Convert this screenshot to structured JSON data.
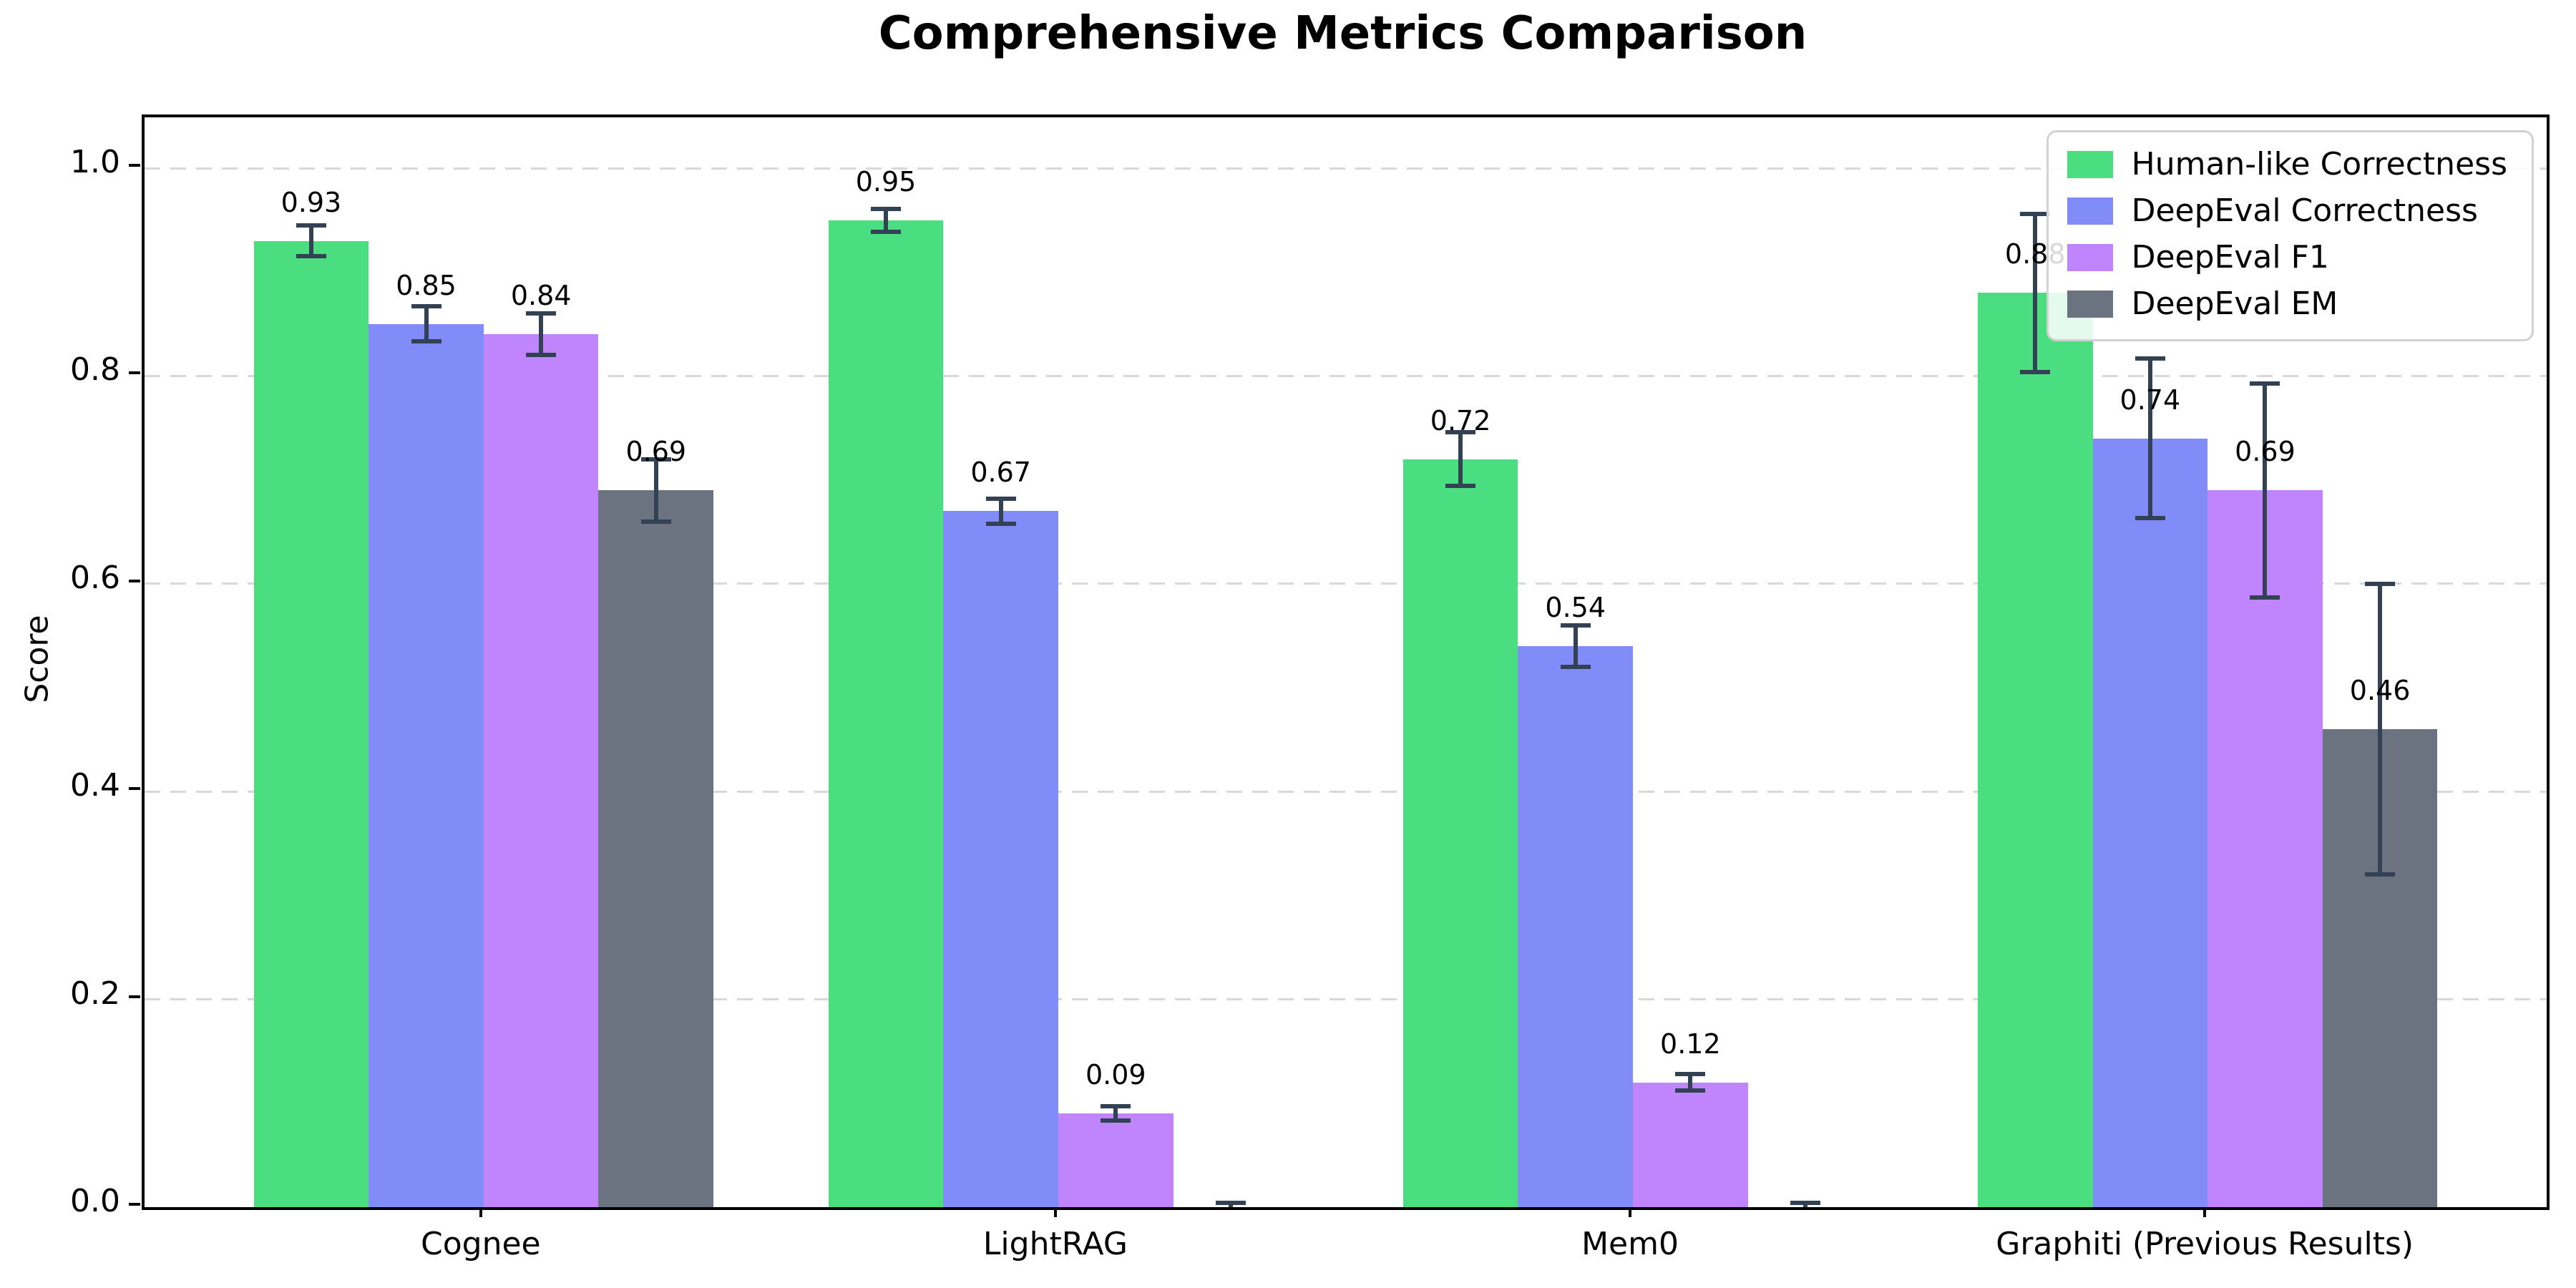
{
  "chart_data": {
    "type": "bar",
    "title": "Comprehensive Metrics Comparison",
    "ylabel": "Score",
    "xlabel": "",
    "categories": [
      "Cognee",
      "LightRAG",
      "Mem0",
      "Graphiti (Previous Results)"
    ],
    "series": [
      {
        "name": "Human-like Correctness",
        "color": "#4ade80",
        "values": [
          0.93,
          0.95,
          0.72,
          0.88
        ],
        "errors": [
          0.015,
          0.011,
          0.026,
          0.076
        ],
        "labels": [
          "0.93",
          "0.95",
          "0.72",
          "0.88"
        ]
      },
      {
        "name": "DeepEval Correctness",
        "color": "#818cf8",
        "values": [
          0.85,
          0.67,
          0.54,
          0.74
        ],
        "errors": [
          0.017,
          0.012,
          0.02,
          0.077
        ],
        "labels": [
          "0.85",
          "0.67",
          "0.54",
          "0.74"
        ]
      },
      {
        "name": "DeepEval F1",
        "color": "#c084fc",
        "values": [
          0.84,
          0.09,
          0.12,
          0.69
        ],
        "errors": [
          0.02,
          0.007,
          0.008,
          0.103
        ],
        "labels": [
          "0.84",
          "0.09",
          "0.12",
          "0.69"
        ]
      },
      {
        "name": "DeepEval EM",
        "color": "#6b7280",
        "values": [
          0.69,
          0.0,
          0.0,
          0.46
        ],
        "errors": [
          0.03,
          0.004,
          0.004,
          0.14
        ],
        "labels": [
          "0.69",
          "",
          "",
          "0.46"
        ]
      }
    ],
    "yticks": [
      0.0,
      0.2,
      0.4,
      0.6,
      0.8,
      1.0
    ],
    "ylim": [
      0,
      1.049
    ],
    "grid": "horizontal-dashed",
    "legend_position": "upper-right",
    "error_bar_color": "#334155",
    "grid_color": "#d9d9d9"
  }
}
